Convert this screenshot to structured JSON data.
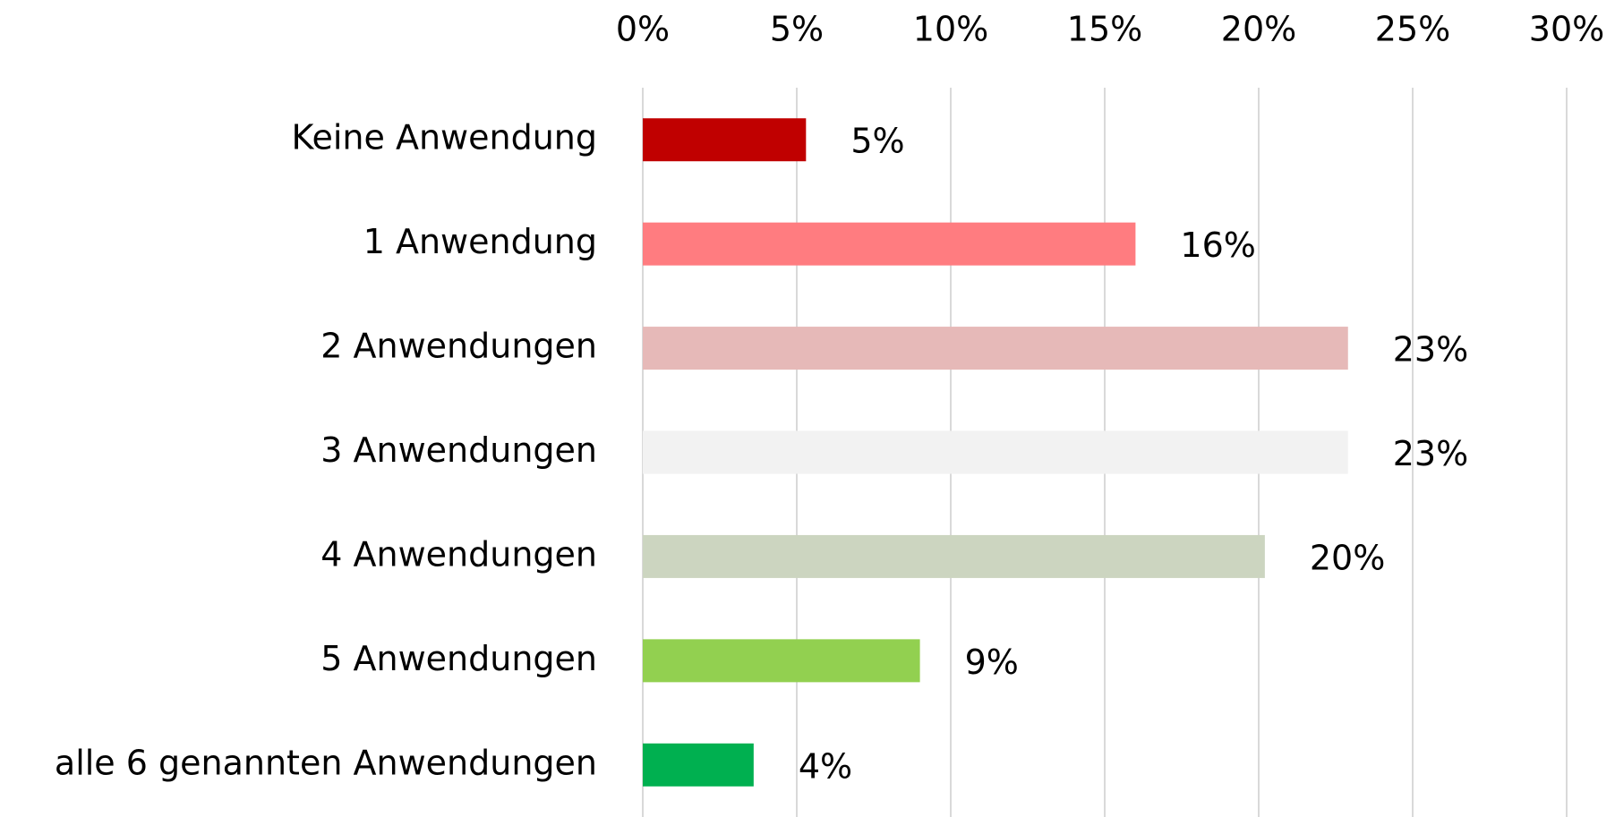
{
  "chart_data": {
    "type": "barh",
    "categories": [
      "Keine Anwendung",
      "1 Anwendung",
      "2 Anwendungen",
      "3 Anwendungen",
      "4 Anwendungen",
      "5 Anwendungen",
      "alle 6 genannten Anwendungen"
    ],
    "values": [
      5.3,
      16,
      22.9,
      22.9,
      20.2,
      9,
      3.6
    ],
    "value_labels": [
      "5%",
      "16%",
      "23%",
      "23%",
      "20%",
      "9%",
      "4%"
    ],
    "colors": [
      "#c00000",
      "#ff7c80",
      "#e6b9b8",
      "#f2f2f2",
      "#ccd5c0",
      "#92d050",
      "#00b050"
    ],
    "xlim": [
      0,
      30
    ],
    "xticks": [
      {
        "value": 0,
        "label": "0%"
      },
      {
        "value": 5,
        "label": "5%"
      },
      {
        "value": 10,
        "label": "10%"
      },
      {
        "value": 15,
        "label": "15%"
      },
      {
        "value": 20,
        "label": "20%"
      },
      {
        "value": 25,
        "label": "25%"
      },
      {
        "value": 30,
        "label": "30%"
      }
    ],
    "grid": true
  }
}
